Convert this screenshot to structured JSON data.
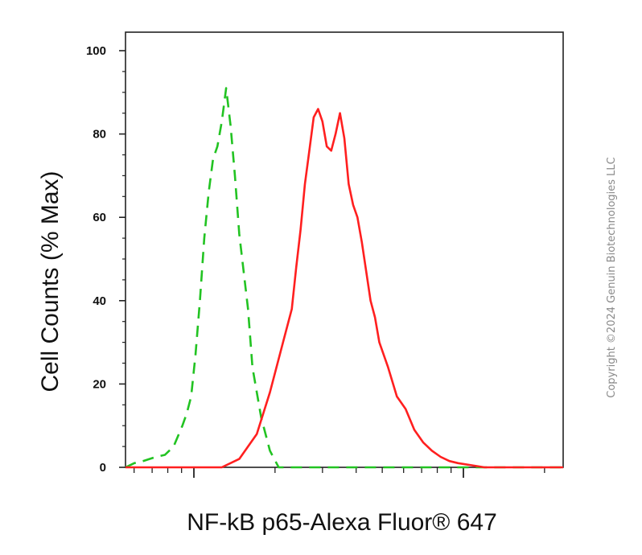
{
  "chart_data": {
    "type": "line",
    "title": "",
    "xlabel": "NF-kB p65-Alexa Fluor® 647",
    "ylabel": "Cell Counts (% Max)",
    "xscale": "log",
    "xlim": [
      0.8,
      2.0
    ],
    "ylim": [
      0,
      100
    ],
    "yticks": [
      0,
      20,
      40,
      60,
      80,
      100
    ],
    "ytick_labels": [
      "0",
      "20",
      "40",
      "60",
      "80",
      "100"
    ],
    "grid": false,
    "legend": "none",
    "series": [
      {
        "style": "dashed",
        "color": "#22c322",
        "x": [
          0,
          2,
          4,
          7,
          9,
          11,
          13,
          14,
          15,
          16,
          17,
          18,
          19,
          20,
          21,
          22,
          23,
          24,
          25,
          26,
          28,
          29,
          31,
          33,
          35,
          37,
          40,
          100
        ],
        "y": [
          0,
          1,
          1.5,
          2.5,
          3,
          5,
          10,
          13,
          17,
          27,
          40,
          55,
          66,
          74,
          77,
          83,
          91,
          82,
          70,
          56,
          38,
          24,
          12,
          4,
          0,
          0,
          0,
          0
        ]
      },
      {
        "style": "solid",
        "color": "#ff1f1f",
        "x": [
          0,
          18,
          22,
          26,
          30,
          33,
          36,
          38,
          39,
          40,
          41,
          42,
          43,
          44,
          45,
          46,
          47,
          48,
          49,
          50,
          51,
          52,
          53,
          54,
          55,
          56,
          57,
          58,
          60,
          62,
          64,
          66,
          68,
          70,
          72,
          74,
          76,
          79,
          82,
          86,
          100
        ],
        "y": [
          0,
          0,
          0,
          2,
          8,
          18,
          30,
          38,
          48,
          57,
          68,
          76,
          84,
          86,
          83,
          77,
          76,
          80,
          85,
          79,
          68,
          63,
          60,
          54,
          47,
          40,
          36,
          30,
          24,
          17,
          14,
          9,
          6,
          4,
          2.5,
          1.5,
          1,
          0.5,
          0,
          0,
          0
        ]
      }
    ]
  },
  "copyright": "Copyright ©2024 Genuin Biotechnologies LLC"
}
